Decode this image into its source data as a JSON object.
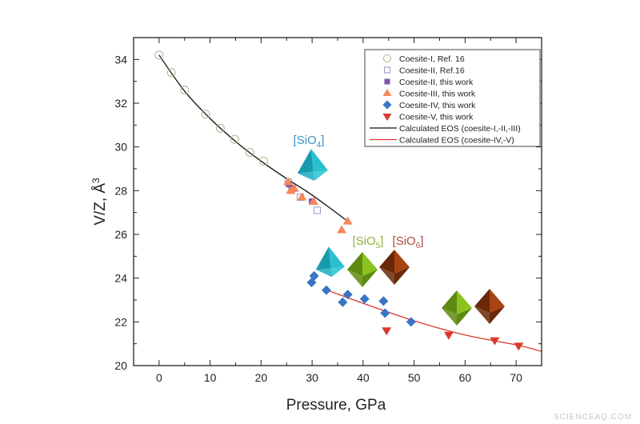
{
  "chart_data": {
    "type": "scatter",
    "xlabel": "Pressure, GPa",
    "ylabel": "V/Z, Å",
    "ylabel_sup": "3",
    "xlim": [
      -5,
      75
    ],
    "ylim": [
      20,
      35
    ],
    "xticks": [
      0,
      10,
      20,
      30,
      40,
      50,
      60,
      70
    ],
    "yticks": [
      20,
      22,
      24,
      26,
      28,
      30,
      32,
      34
    ],
    "grid": false,
    "legend_position": "top-right",
    "series": [
      {
        "name": "Coesite-I, Ref. 16",
        "marker": "open-circle",
        "color": "#b5b38f",
        "points": [
          [
            0,
            34.2
          ],
          [
            2.4,
            33.4
          ],
          [
            5.0,
            32.6
          ],
          [
            9.1,
            31.5
          ],
          [
            12.0,
            30.85
          ],
          [
            14.8,
            30.35
          ],
          [
            17.8,
            29.75
          ],
          [
            20.5,
            29.35
          ]
        ]
      },
      {
        "name": "Coesite-II, Ref.16",
        "marker": "open-square",
        "color": "#9a96c8",
        "points": [
          [
            25.3,
            28.4
          ],
          [
            26.2,
            28.1
          ],
          [
            27.7,
            27.7
          ],
          [
            31.0,
            27.1
          ]
        ]
      },
      {
        "name": "Coesite-II, this work",
        "marker": "square",
        "color": "#7a58a8",
        "points": [
          [
            25.5,
            28.3
          ],
          [
            26.0,
            28.1
          ],
          [
            30.0,
            27.5
          ]
        ]
      },
      {
        "name": "Coesite-III, this work",
        "marker": "triangle",
        "color": "#f4885a",
        "points": [
          [
            25.3,
            28.4
          ],
          [
            25.8,
            28.0
          ],
          [
            26.5,
            28.1
          ],
          [
            28.0,
            27.7
          ],
          [
            30.3,
            27.5
          ],
          [
            35.8,
            26.2
          ],
          [
            37.0,
            26.6
          ]
        ]
      },
      {
        "name": "Coesite-IV, this work",
        "marker": "diamond",
        "color": "#3a74c4",
        "points": [
          [
            30.4,
            24.1
          ],
          [
            29.9,
            23.8
          ],
          [
            32.8,
            23.45
          ],
          [
            36.0,
            22.9
          ],
          [
            37.0,
            23.25
          ],
          [
            40.3,
            23.05
          ],
          [
            44.0,
            22.95
          ],
          [
            44.3,
            22.4
          ],
          [
            49.4,
            22.0
          ]
        ]
      },
      {
        "name": "Coesite-V, this work",
        "marker": "inverted-triangle",
        "color": "#d93a2e",
        "points": [
          [
            44.6,
            21.6
          ],
          [
            56.8,
            21.4
          ],
          [
            65.8,
            21.15
          ],
          [
            70.5,
            20.9
          ]
        ]
      },
      {
        "name": "Calculated EOS (coesite-I,-II,-III)",
        "marker": "line",
        "color": "#111111",
        "points": [
          [
            0,
            34.2
          ],
          [
            5,
            32.55
          ],
          [
            10,
            31.3
          ],
          [
            15,
            30.25
          ],
          [
            20,
            29.35
          ],
          [
            25,
            28.55
          ],
          [
            30,
            27.8
          ],
          [
            37,
            26.6
          ]
        ]
      },
      {
        "name": "Calculated EOS (coesite-IV,-V)",
        "marker": "line",
        "color": "#d93a2e",
        "points": [
          [
            33,
            23.45
          ],
          [
            40,
            22.85
          ],
          [
            50,
            22.05
          ],
          [
            60,
            21.4
          ],
          [
            70,
            20.95
          ],
          [
            75,
            20.65
          ]
        ]
      }
    ],
    "annotations": [
      {
        "text": "[SiO",
        "sub": "4",
        "close": "]",
        "color": "#3a8fc8"
      },
      {
        "text": "[SiO",
        "sub": "5",
        "close": "]",
        "color": "#8fb23a"
      },
      {
        "text": "[SiO",
        "sub": "6",
        "close": "]",
        "color": "#b04a3a"
      }
    ],
    "polyhedra_colors": {
      "tetrahedron": "#2bc0d0",
      "pentahedron": "#8cc31e",
      "octahedron": "#a84412"
    }
  },
  "watermark": "SCIENCEAQ.COM"
}
